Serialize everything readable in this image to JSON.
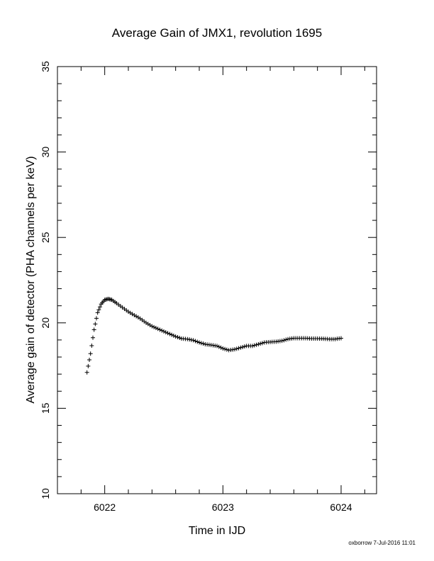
{
  "chart_data": {
    "type": "scatter",
    "title": "Average Gain of JMX1, revolution 1695",
    "xlabel": "Time in IJD",
    "ylabel": "Average gain of detector (PHA channels per keV)",
    "xlim": [
      6021.6,
      6024.3
    ],
    "ylim": [
      10,
      35
    ],
    "x_ticks": [
      "6022",
      "6023",
      "6024"
    ],
    "y_ticks": [
      "10",
      "15",
      "20",
      "25",
      "30",
      "35"
    ],
    "grid": false,
    "marker": "plus",
    "series": [
      {
        "x": [
          6021.85,
          6021.88,
          6021.91,
          6021.94,
          6021.97,
          6022.0,
          6022.03,
          6022.06,
          6022.1,
          6022.15,
          6022.2,
          6022.25,
          6022.3,
          6022.35,
          6022.4,
          6022.45,
          6022.5,
          6022.55,
          6022.6,
          6022.65,
          6022.7,
          6022.75,
          6022.8,
          6022.85,
          6022.9,
          6022.95,
          6023.0,
          6023.05,
          6023.1,
          6023.15,
          6023.2,
          6023.25,
          6023.3,
          6023.35,
          6023.4,
          6023.45,
          6023.5,
          6023.55,
          6023.6,
          6023.65,
          6023.7,
          6023.75,
          6023.8,
          6023.85,
          6023.9,
          6023.95,
          6024.0
        ],
        "y": [
          17.1,
          18.2,
          19.6,
          20.6,
          21.1,
          21.35,
          21.4,
          21.35,
          21.15,
          20.9,
          20.65,
          20.45,
          20.25,
          20.0,
          19.8,
          19.65,
          19.5,
          19.35,
          19.2,
          19.08,
          19.05,
          18.98,
          18.85,
          18.75,
          18.7,
          18.65,
          18.5,
          18.4,
          18.45,
          18.55,
          18.65,
          18.65,
          18.75,
          18.85,
          18.88,
          18.9,
          18.95,
          19.05,
          19.1,
          19.1,
          19.1,
          19.08,
          19.08,
          19.07,
          19.05,
          19.05,
          19.1
        ]
      }
    ]
  },
  "footer": "oxborrow  7-Jul-2016 11:01"
}
